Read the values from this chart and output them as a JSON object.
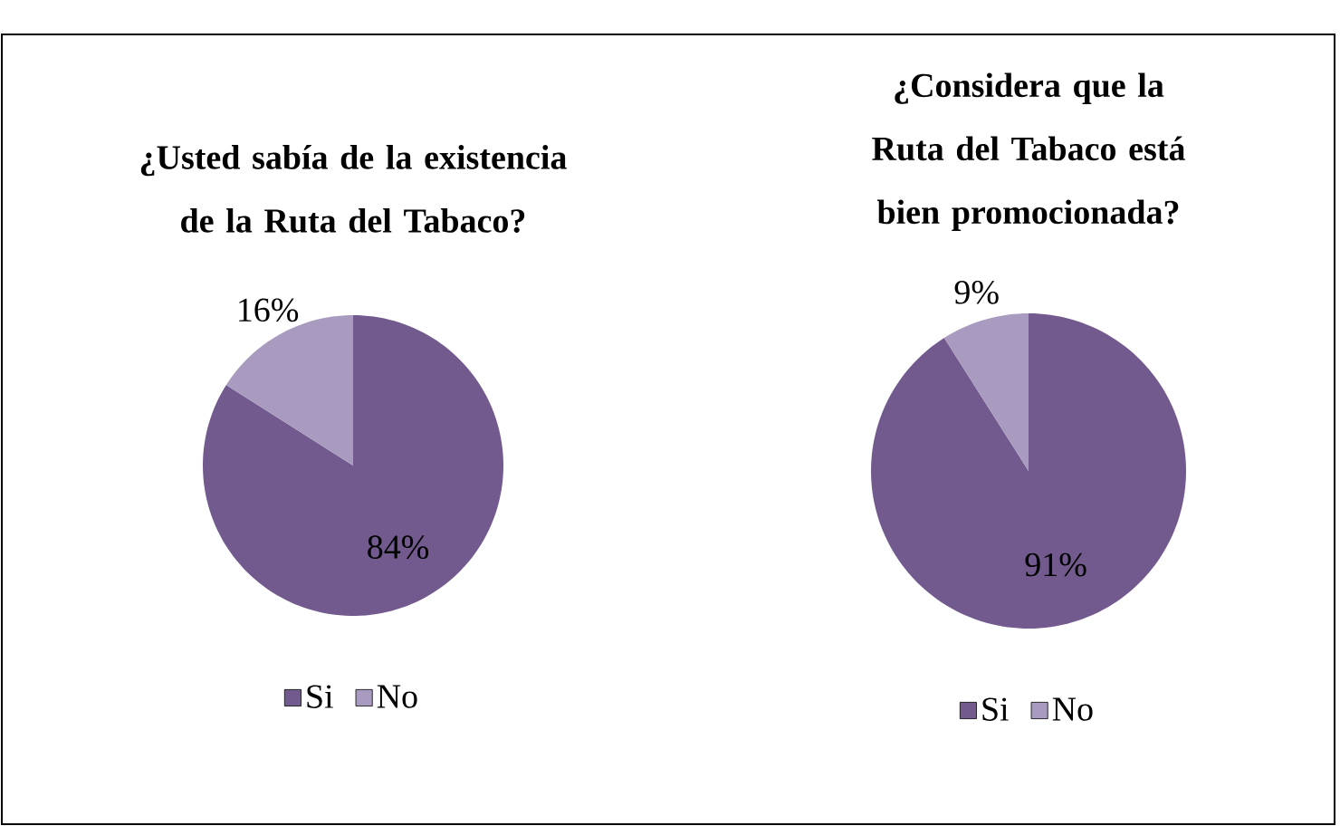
{
  "chart_data": [
    {
      "type": "pie",
      "title": "¿Usted sabía de la existencia de la Ruta del Tabaco?",
      "categories": [
        "Si",
        "No"
      ],
      "values": [
        84,
        16
      ],
      "value_labels": [
        "84%",
        "16%"
      ],
      "colors": [
        "#725a8e",
        "#a99bbf"
      ],
      "legend": "bottom"
    },
    {
      "type": "pie",
      "title": "¿Considera que la Ruta del Tabaco está bien promocionada?",
      "categories": [
        "Si",
        "No"
      ],
      "values": [
        91,
        9
      ],
      "value_labels": [
        "91%",
        "9%"
      ],
      "colors": [
        "#725a8e",
        "#a99bbf"
      ],
      "legend": "bottom"
    }
  ]
}
